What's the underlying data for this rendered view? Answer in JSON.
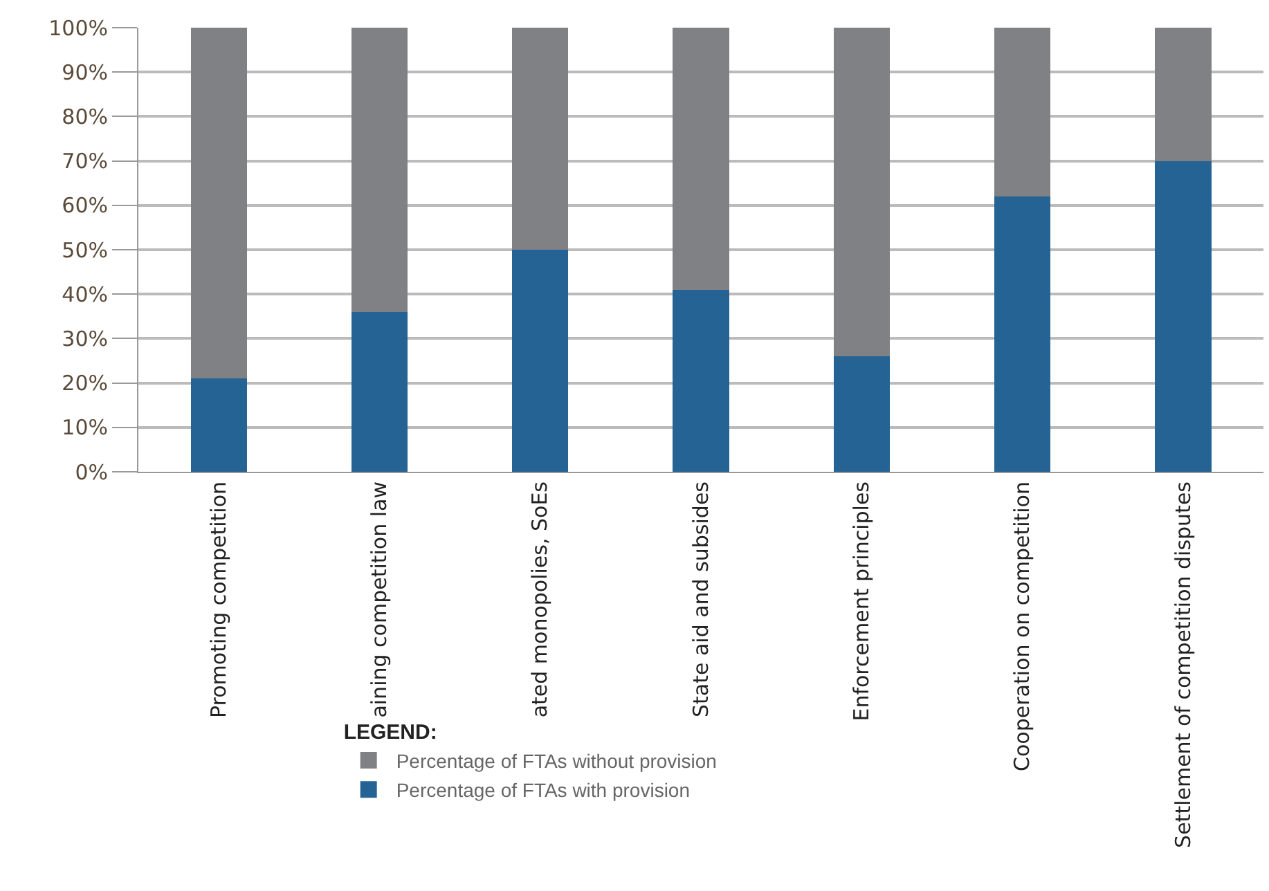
{
  "chart_data": {
    "type": "bar",
    "stacked": true,
    "categories": [
      "Promoting competition",
      "aining competition law",
      "ated monopolies, SoEs",
      "State aid and subsides",
      "Enforcement principles",
      "Cooperation on competition",
      "Settlement of competition disputes"
    ],
    "series": [
      {
        "name": "Percentage of FTAs with provision",
        "color": "#256394",
        "values": [
          21,
          36,
          50,
          41,
          26,
          62,
          70
        ]
      },
      {
        "name": "Percentage of FTAs without provision",
        "color": "#808184",
        "values": [
          79,
          64,
          50,
          59,
          74,
          38,
          30
        ]
      }
    ],
    "ylim": [
      0,
      100
    ],
    "yticks": [
      {
        "value": 0,
        "label": "0%"
      },
      {
        "value": 10,
        "label": "10%"
      },
      {
        "value": 20,
        "label": "20%"
      },
      {
        "value": 30,
        "label": "30%"
      },
      {
        "value": 40,
        "label": "40%"
      },
      {
        "value": 50,
        "label": "50%"
      },
      {
        "value": 60,
        "label": "60%"
      },
      {
        "value": 70,
        "label": "70%"
      },
      {
        "value": 80,
        "label": "80%"
      },
      {
        "value": 90,
        "label": "90%"
      },
      {
        "value": 100,
        "label": "100%"
      }
    ],
    "grid": "y",
    "legend": "bottom",
    "legend_title": "LEGEND:"
  }
}
